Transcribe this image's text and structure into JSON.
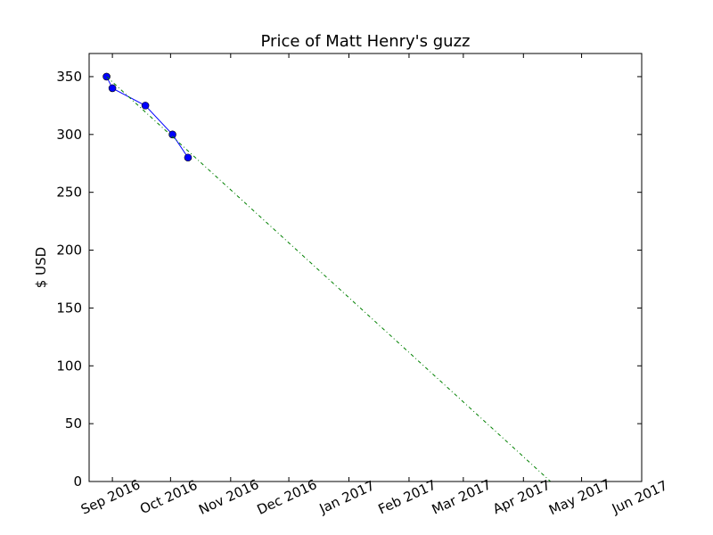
{
  "chart_data": {
    "type": "line",
    "title": "Price of Matt Henry's guzz",
    "xlabel": "",
    "ylabel": "$ USD",
    "grid": false,
    "legend": "none",
    "xlim": [
      "2016-08-20",
      "2017-06-01"
    ],
    "ylim": [
      0,
      370
    ],
    "x_ticks": [
      {
        "date": "2016-09-01",
        "label": "Sep 2016"
      },
      {
        "date": "2016-10-01",
        "label": "Oct 2016"
      },
      {
        "date": "2016-11-01",
        "label": "Nov 2016"
      },
      {
        "date": "2016-12-01",
        "label": "Dec 2016"
      },
      {
        "date": "2017-01-01",
        "label": "Jan 2017"
      },
      {
        "date": "2017-02-01",
        "label": "Feb 2017"
      },
      {
        "date": "2017-03-01",
        "label": "Mar 2017"
      },
      {
        "date": "2017-04-01",
        "label": "Apr 2017"
      },
      {
        "date": "2017-05-01",
        "label": "May 2017"
      },
      {
        "date": "2017-06-01",
        "label": "Jun 2017"
      }
    ],
    "y_ticks": [
      0,
      50,
      100,
      150,
      200,
      250,
      300,
      350
    ],
    "series": [
      {
        "style": "solid-markers",
        "color": "#0000ff",
        "points": [
          {
            "x": "2016-08-29",
            "y": 350
          },
          {
            "x": "2016-09-01",
            "y": 340
          },
          {
            "x": "2016-09-18",
            "y": 325
          },
          {
            "x": "2016-10-02",
            "y": 300
          },
          {
            "x": "2016-10-10",
            "y": 280
          }
        ]
      },
      {
        "style": "dash-dot",
        "color": "#008000",
        "points": [
          {
            "x": "2016-08-29",
            "y": 350
          },
          {
            "x": "2017-04-15",
            "y": 0
          }
        ]
      }
    ]
  }
}
